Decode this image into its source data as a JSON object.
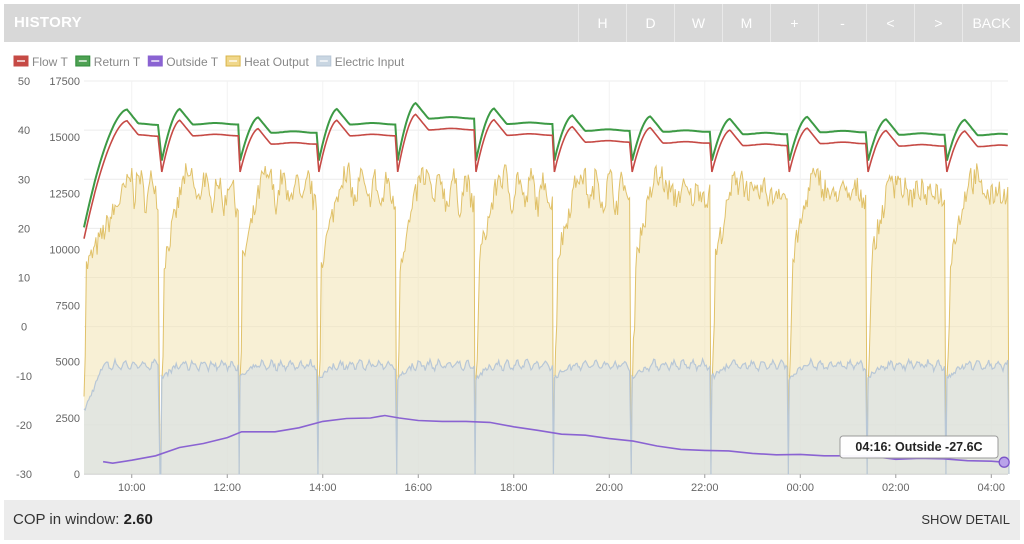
{
  "header": {
    "title": "HISTORY",
    "nav": [
      "H",
      "D",
      "W",
      "M",
      "+",
      "-",
      "<",
      ">",
      "BACK"
    ]
  },
  "footer": {
    "cop_label": "COP in window:",
    "cop_value": "2.60",
    "show_detail": "SHOW DETAIL"
  },
  "tooltip": {
    "text": "04:16: Outside -27.6C"
  },
  "chart_data": {
    "type": "line",
    "legend": [
      {
        "name": "Flow T",
        "color": "#c64a45",
        "fill": "#c64a45"
      },
      {
        "name": "Return T",
        "color": "#2e8b3a",
        "fill": "#4ea153"
      },
      {
        "name": "Outside T",
        "color": "#8a63d2",
        "fill": "#8a63d2"
      },
      {
        "name": "Heat Output",
        "color": "#d9b44a",
        "fill": "#f0d78a"
      },
      {
        "name": "Electric Input",
        "color": "#b8c7d6",
        "fill": "#c9d6e2"
      }
    ],
    "y_left": {
      "ticks": [
        50,
        40,
        30,
        20,
        10,
        0,
        -10,
        -20,
        -30
      ],
      "range": [
        -30,
        50
      ]
    },
    "y_right": {
      "ticks": [
        17500,
        15000,
        12500,
        10000,
        7500,
        5000,
        2500,
        0
      ],
      "range": [
        0,
        17500
      ]
    },
    "x_ticks": [
      "10:00",
      "12:00",
      "14:00",
      "16:00",
      "18:00",
      "20:00",
      "22:00",
      "00:00",
      "02:00",
      "04:00"
    ],
    "x_range_hours": [
      9.0,
      28.35
    ],
    "cycles": [
      {
        "start": 9.0,
        "end": 10.57,
        "peak": 44.2
      },
      {
        "start": 10.63,
        "end": 12.23,
        "peak": 44.3
      },
      {
        "start": 12.27,
        "end": 13.88,
        "peak": 42.6
      },
      {
        "start": 13.92,
        "end": 15.53,
        "peak": 44.3
      },
      {
        "start": 15.57,
        "end": 17.17,
        "peak": 45.5
      },
      {
        "start": 17.21,
        "end": 18.81,
        "peak": 44.4
      },
      {
        "start": 18.85,
        "end": 20.44,
        "peak": 43.0
      },
      {
        "start": 20.48,
        "end": 22.11,
        "peak": 42.8
      },
      {
        "start": 22.15,
        "end": 23.73,
        "peak": 42.3
      },
      {
        "start": 23.77,
        "end": 25.38,
        "peak": 42.7
      },
      {
        "start": 25.42,
        "end": 27.03,
        "peak": 42.2
      },
      {
        "start": 27.07,
        "end": 28.35,
        "peak": 42.1
      }
    ],
    "outside": {
      "x": [
        9.4,
        9.6,
        10.0,
        10.5,
        11.0,
        11.5,
        12.0,
        12.3,
        13.0,
        13.5,
        14.0,
        14.5,
        15.0,
        15.3,
        15.6,
        16.0,
        16.5,
        17.0,
        17.5,
        18.0,
        18.5,
        19.0,
        19.5,
        20.0,
        20.5,
        21.0,
        21.5,
        22.0,
        22.5,
        23.0,
        23.5,
        24.0,
        24.5,
        25.0,
        25.5,
        26.0,
        26.5,
        27.0,
        27.5,
        28.0,
        28.27
      ],
      "y": [
        -27.5,
        -27.8,
        -27.2,
        -26.3,
        -24.6,
        -23.8,
        -22.6,
        -21.4,
        -21.4,
        -20.6,
        -19.3,
        -18.7,
        -18.6,
        -18.1,
        -18.6,
        -19.1,
        -19.3,
        -19.3,
        -19.5,
        -20.4,
        -21.1,
        -21.9,
        -22.1,
        -22.8,
        -23.3,
        -24.3,
        -25.0,
        -25.2,
        -25.3,
        -25.8,
        -26.1,
        -26.0,
        -26.3,
        -26.3,
        -26.4,
        -27.0,
        -26.8,
        -26.9,
        -27.3,
        -27.4,
        -27.6
      ]
    }
  }
}
